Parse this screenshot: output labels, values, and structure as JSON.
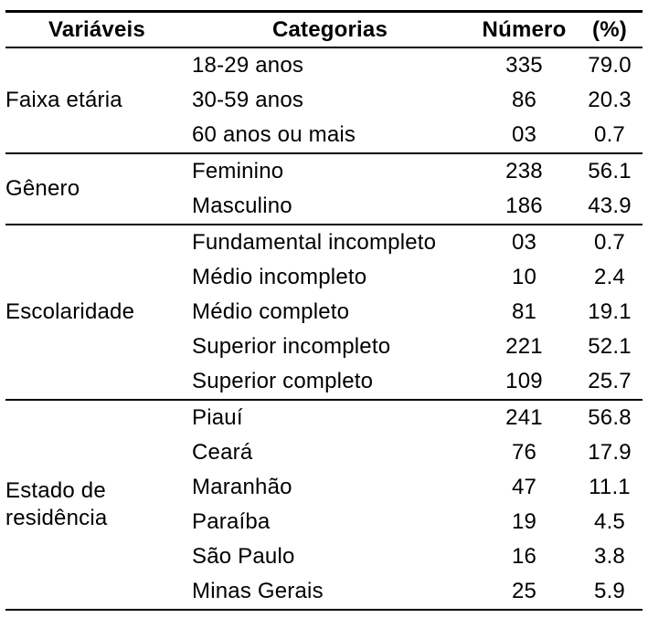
{
  "table": {
    "headers": {
      "variable": "Variáveis",
      "category": "Categorias",
      "number": "Número",
      "percent": "(%)"
    },
    "groups": [
      {
        "variable": "Faixa etária",
        "rows": [
          {
            "category": "18-29 anos",
            "number": "335",
            "percent": "79.0"
          },
          {
            "category": "30-59 anos",
            "number": "86",
            "percent": "20.3"
          },
          {
            "category": "60 anos ou mais",
            "number": "03",
            "percent": "0.7"
          }
        ]
      },
      {
        "variable": "Gênero",
        "rows": [
          {
            "category": "Feminino",
            "number": "238",
            "percent": "56.1"
          },
          {
            "category": "Masculino",
            "number": "186",
            "percent": "43.9"
          }
        ]
      },
      {
        "variable": "Escolaridade",
        "rows": [
          {
            "category": "Fundamental incompleto",
            "number": "03",
            "percent": "0.7"
          },
          {
            "category": "Médio incompleto",
            "number": "10",
            "percent": "2.4"
          },
          {
            "category": "Médio completo",
            "number": "81",
            "percent": "19.1"
          },
          {
            "category": "Superior incompleto",
            "number": "221",
            "percent": "52.1"
          },
          {
            "category": "Superior completo",
            "number": "109",
            "percent": "25.7"
          }
        ]
      },
      {
        "variable": "Estado de residência",
        "rows": [
          {
            "category": "Piauí",
            "number": "241",
            "percent": "56.8"
          },
          {
            "category": "Ceará",
            "number": "76",
            "percent": "17.9"
          },
          {
            "category": "Maranhão",
            "number": "47",
            "percent": "11.1"
          },
          {
            "category": "Paraíba",
            "number": "19",
            "percent": "4.5"
          },
          {
            "category": "São Paulo",
            "number": "16",
            "percent": "3.8"
          },
          {
            "category": "Minas Gerais",
            "number": "25",
            "percent": "5.9"
          }
        ]
      }
    ]
  }
}
